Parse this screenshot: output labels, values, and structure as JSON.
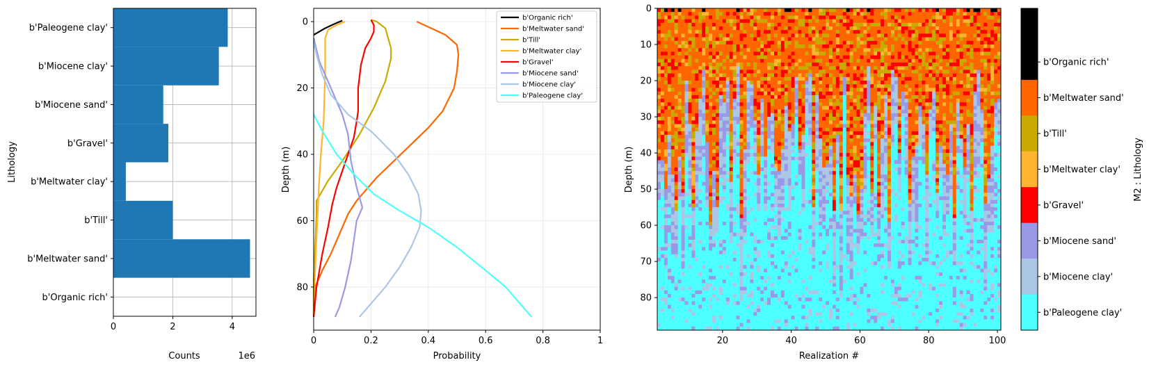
{
  "colors": {
    "b'Organic rich'": "#000000",
    "b'Meltwater sand'": "#ff6600",
    "b'Till'": "#c8aa00",
    "b'Meltwater clay'": "#ffb432",
    "b'Gravel'": "#ff0000",
    "b'Miocene sand'": "#9999e6",
    "b'Miocene clay'": "#aac8e6",
    "b'Paleogene clay'": "#4dffff",
    "bar": "#1f77b4",
    "grid": "#b0b0b0"
  },
  "chart_data": [
    {
      "type": "bar",
      "orientation": "horizontal",
      "title": "",
      "xlabel": "Counts",
      "ylabel": "Lithology",
      "x_multiplier_label": "1e6",
      "xlim": [
        0,
        4.8
      ],
      "xticks": [
        0,
        2,
        4
      ],
      "grid": true,
      "categories": [
        "b'Organic rich'",
        "b'Meltwater sand'",
        "b'Till'",
        "b'Meltwater clay'",
        "b'Gravel'",
        "b'Miocene sand'",
        "b'Miocene clay'",
        "b'Paleogene clay'"
      ],
      "values": [
        0.01,
        4.6,
        2.0,
        0.42,
        1.85,
        1.68,
        3.55,
        3.85
      ]
    },
    {
      "type": "line",
      "title": "",
      "xlabel": "Probability",
      "ylabel": "Depth (m)",
      "xlim": [
        0,
        1
      ],
      "ylim": [
        93,
        -4
      ],
      "xticks": [
        0.0,
        0.2,
        0.4,
        0.6,
        0.8,
        1.0
      ],
      "yticks": [
        0,
        20,
        40,
        60,
        80
      ],
      "grid": true,
      "legend_position": "top-right",
      "series": [
        {
          "name": "b'Organic rich'",
          "points": [
            [
              0.0,
              4
            ],
            [
              0.02,
              3
            ],
            [
              0.04,
              2
            ],
            [
              0.06,
              1.2
            ],
            [
              0.08,
              0.4
            ],
            [
              0.1,
              -0.3
            ]
          ]
        },
        {
          "name": "b'Meltwater sand'",
          "points": [
            [
              0.36,
              0
            ],
            [
              0.41,
              2
            ],
            [
              0.46,
              4
            ],
            [
              0.5,
              7
            ],
            [
              0.505,
              10
            ],
            [
              0.5,
              15
            ],
            [
              0.49,
              20
            ],
            [
              0.45,
              27
            ],
            [
              0.4,
              32
            ],
            [
              0.34,
              37
            ],
            [
              0.28,
              42
            ],
            [
              0.22,
              47
            ],
            [
              0.15,
              54
            ],
            [
              0.12,
              58
            ],
            [
              0.09,
              64
            ],
            [
              0.06,
              70
            ],
            [
              0.03,
              75
            ],
            [
              0.005,
              80
            ],
            [
              0.0,
              84
            ],
            [
              0.0,
              89
            ]
          ]
        },
        {
          "name": "b'Till'",
          "points": [
            [
              0.2,
              -0.5
            ],
            [
              0.22,
              0
            ],
            [
              0.25,
              2
            ],
            [
              0.27,
              8
            ],
            [
              0.27,
              11
            ],
            [
              0.25,
              18
            ],
            [
              0.21,
              26
            ],
            [
              0.16,
              34
            ],
            [
              0.1,
              42
            ],
            [
              0.05,
              48
            ],
            [
              0.01,
              54
            ],
            [
              0.01,
              58
            ],
            [
              0.005,
              68
            ],
            [
              0.0,
              78
            ],
            [
              0.0,
              89
            ]
          ]
        },
        {
          "name": "b'Meltwater clay'",
          "points": [
            [
              0.11,
              0
            ],
            [
              0.08,
              1
            ],
            [
              0.05,
              2.5
            ],
            [
              0.04,
              5
            ],
            [
              0.04,
              15
            ],
            [
              0.035,
              30
            ],
            [
              0.025,
              40
            ],
            [
              0.018,
              50
            ],
            [
              0.015,
              56
            ],
            [
              0.01,
              65
            ],
            [
              0.005,
              75
            ],
            [
              0.0,
              85
            ],
            [
              0.0,
              89
            ]
          ]
        },
        {
          "name": "b'Gravel'",
          "points": [
            [
              0.2,
              -0.5
            ],
            [
              0.21,
              1
            ],
            [
              0.21,
              3
            ],
            [
              0.2,
              5
            ],
            [
              0.18,
              8
            ],
            [
              0.165,
              13
            ],
            [
              0.155,
              20
            ],
            [
              0.155,
              27
            ],
            [
              0.15,
              30
            ],
            [
              0.14,
              35
            ],
            [
              0.12,
              40
            ],
            [
              0.1,
              45
            ],
            [
              0.08,
              50
            ],
            [
              0.065,
              55
            ],
            [
              0.05,
              62
            ],
            [
              0.03,
              70
            ],
            [
              0.01,
              80
            ],
            [
              0.0,
              89
            ]
          ]
        },
        {
          "name": "b'Miocene sand'",
          "points": [
            [
              0.0,
              5
            ],
            [
              0.02,
              12
            ],
            [
              0.06,
              20
            ],
            [
              0.1,
              28
            ],
            [
              0.12,
              34
            ],
            [
              0.13,
              42
            ],
            [
              0.15,
              50
            ],
            [
              0.17,
              56
            ],
            [
              0.15,
              60
            ],
            [
              0.14,
              66
            ],
            [
              0.13,
              72
            ],
            [
              0.11,
              80
            ],
            [
              0.09,
              86
            ],
            [
              0.075,
              89
            ]
          ]
        },
        {
          "name": "b'Miocene clay'",
          "points": [
            [
              0.0,
              6
            ],
            [
              0.01,
              10
            ],
            [
              0.03,
              16
            ],
            [
              0.06,
              22
            ],
            [
              0.12,
              28
            ],
            [
              0.2,
              33
            ],
            [
              0.28,
              40
            ],
            [
              0.33,
              46
            ],
            [
              0.365,
              52
            ],
            [
              0.375,
              57
            ],
            [
              0.37,
              62
            ],
            [
              0.34,
              68
            ],
            [
              0.3,
              74
            ],
            [
              0.25,
              80
            ],
            [
              0.2,
              85
            ],
            [
              0.16,
              89
            ]
          ]
        },
        {
          "name": "b'Paleogene clay'",
          "points": [
            [
              0.0,
              28
            ],
            [
              0.03,
              33
            ],
            [
              0.08,
              40
            ],
            [
              0.14,
              46
            ],
            [
              0.21,
              52
            ],
            [
              0.3,
              57
            ],
            [
              0.4,
              62
            ],
            [
              0.5,
              68
            ],
            [
              0.6,
              75
            ],
            [
              0.67,
              80
            ],
            [
              0.72,
              85
            ],
            [
              0.76,
              89
            ]
          ]
        }
      ]
    },
    {
      "type": "heatmap",
      "title": "",
      "xlabel": "Realization #",
      "ylabel": "Depth (m)",
      "xlim": [
        1,
        101
      ],
      "ylim": [
        89,
        0
      ],
      "xticks": [
        20,
        40,
        60,
        80,
        100
      ],
      "yticks": [
        0,
        10,
        20,
        30,
        40,
        50,
        60,
        70,
        80
      ],
      "description_of_cells": "per-realization lithology columns; organic rich at surface, meltwater sand / till / gravel in upper part, Miocene sand/clay and Paleogene clay at depth",
      "colorbar_label": "M2 : Lithology",
      "colorbar_ticks": [
        "b'Organic rich'",
        "b'Meltwater sand'",
        "b'Till'",
        "b'Meltwater clay'",
        "b'Gravel'",
        "b'Miocene sand'",
        "b'Miocene clay'",
        "b'Paleogene clay'"
      ]
    }
  ]
}
